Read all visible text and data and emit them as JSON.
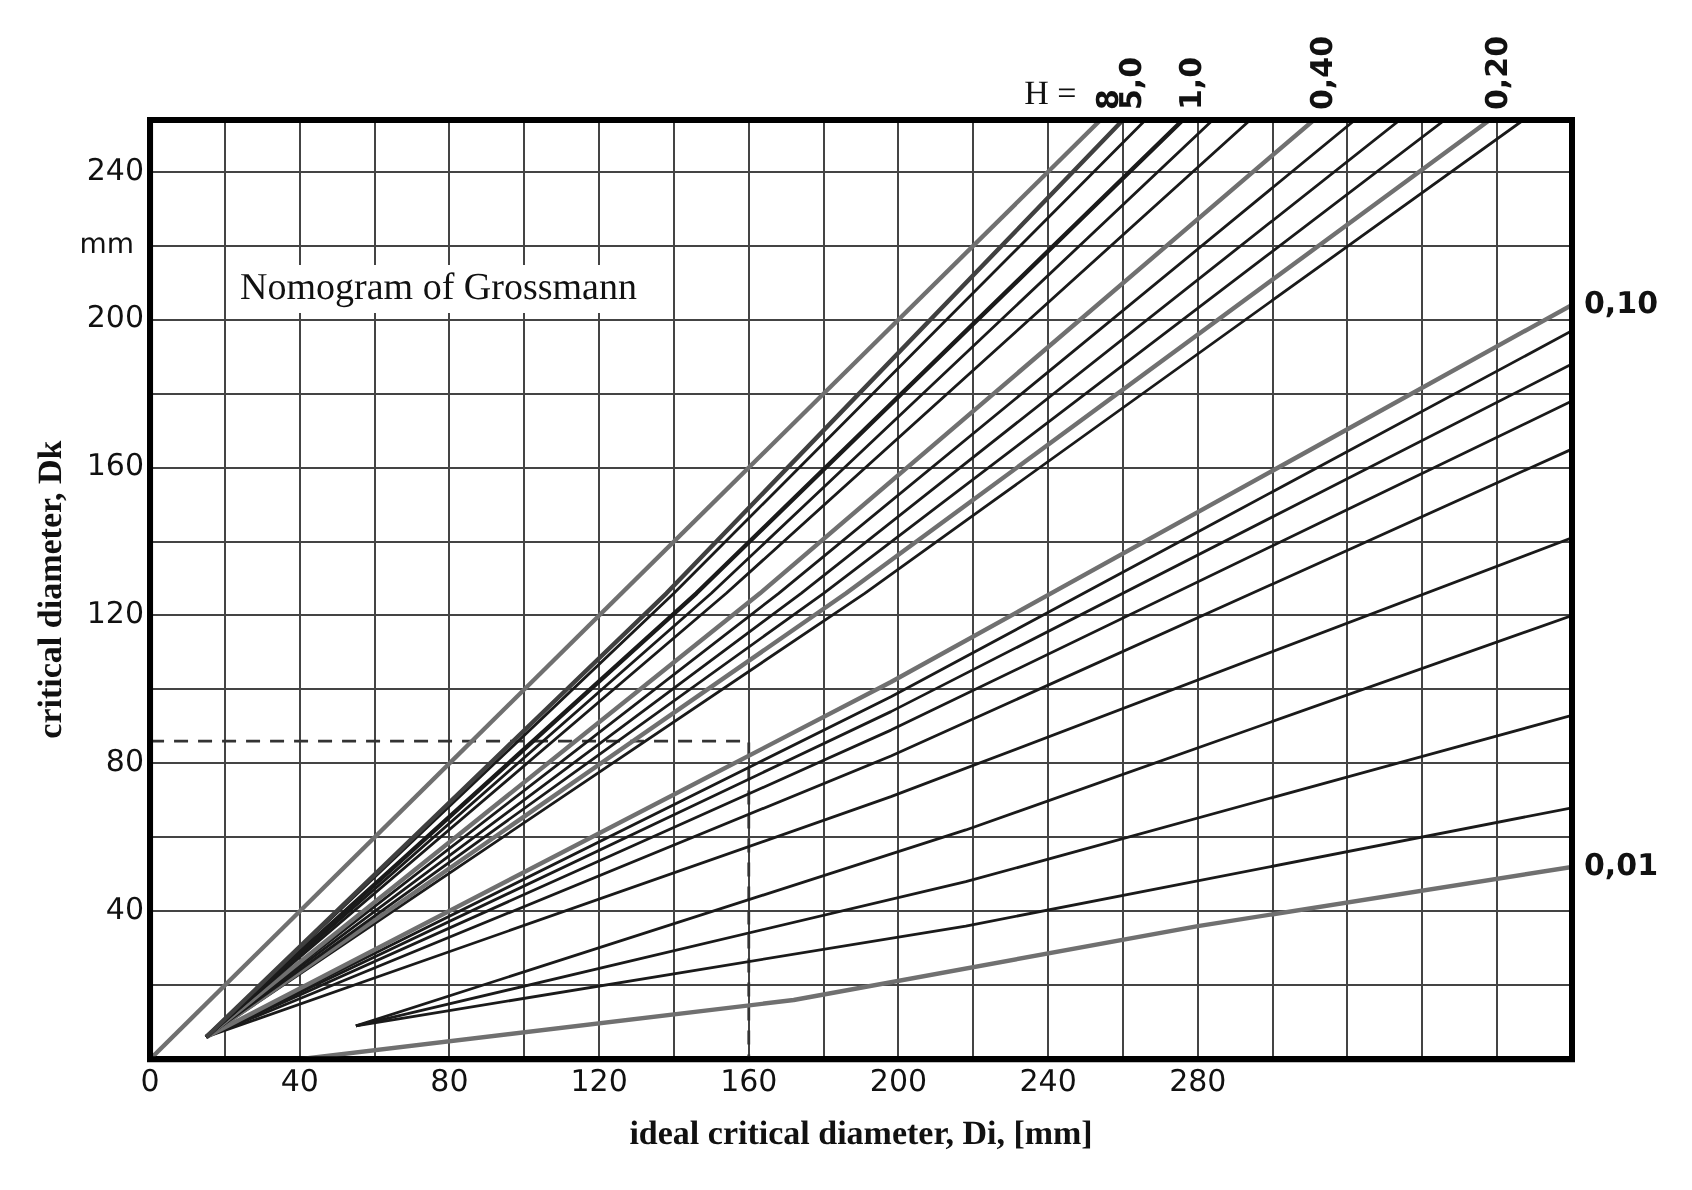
{
  "chart_data": {
    "type": "line",
    "title": "Nomogram of Grossmann",
    "xlabel": "ideal critical diameter, Di, [mm]",
    "ylabel": "critical diameter, Dk",
    "annotations": [
      "H =",
      "mm"
    ],
    "xlim": [
      0,
      380
    ],
    "ylim": [
      0,
      254
    ],
    "xticks": [
      0,
      {
        "value": 20,
        "label": null
      },
      40,
      {
        "value": 60,
        "label": null
      },
      80,
      {
        "value": 100,
        "label": null
      },
      120,
      {
        "value": 140,
        "label": null
      },
      160,
      {
        "value": 180,
        "label": null
      },
      200,
      {
        "value": 220,
        "label": null
      },
      240,
      {
        "value": 260,
        "label": null
      },
      280,
      {
        "value": 300,
        "label": null
      },
      {
        "value": 320,
        "label": null
      },
      {
        "value": 340,
        "label": null
      },
      {
        "value": 360,
        "label": null
      },
      {
        "value": 380,
        "label": null
      }
    ],
    "yticks": [
      {
        "value": 0,
        "label": null
      },
      {
        "value": 20,
        "label": null
      },
      40,
      {
        "value": 60,
        "label": null
      },
      80,
      {
        "value": 100,
        "label": null
      },
      120,
      {
        "value": 140,
        "label": null
      },
      160,
      {
        "value": 180,
        "label": null
      },
      200,
      {
        "value": 220,
        "label": null
      },
      240
    ],
    "grid": true,
    "legend": false,
    "marker": "none",
    "series": [
      {
        "name": "8",
        "color": "#707070",
        "x": [
          0,
          254
        ],
        "values": [
          0,
          254
        ]
      },
      {
        "name": "5,0",
        "color": "#404040",
        "x": [
          15,
          138,
          260
        ],
        "values": [
          6,
          126,
          254
        ]
      },
      {
        "color": "#1a1a1a",
        "x": [
          15,
          140,
          266
        ],
        "values": [
          6,
          126,
          254
        ]
      },
      {
        "name": "1,0",
        "color": "#1a1a1a",
        "x": [
          15,
          146,
          276
        ],
        "values": [
          6,
          126,
          254
        ]
      },
      {
        "color": "#1a1a1a",
        "x": [
          15,
          150,
          284
        ],
        "values": [
          6,
          126,
          254
        ]
      },
      {
        "color": "#1a1a1a",
        "x": [
          15,
          154,
          294
        ],
        "values": [
          6,
          126,
          254
        ]
      },
      {
        "name": "0,40",
        "color": "#707070",
        "x": [
          15,
          163,
          311
        ],
        "values": [
          6,
          126,
          254
        ]
      },
      {
        "color": "#1a1a1a",
        "x": [
          15,
          168,
          322
        ],
        "values": [
          6,
          126,
          254
        ]
      },
      {
        "color": "#1a1a1a",
        "x": [
          15,
          174,
          334
        ],
        "values": [
          6,
          126,
          254
        ]
      },
      {
        "color": "#1a1a1a",
        "x": [
          15,
          180,
          346
        ],
        "values": [
          6,
          126,
          254
        ]
      },
      {
        "name": "0,20",
        "color": "#707070",
        "x": [
          15,
          186,
          358
        ],
        "values": [
          6,
          126,
          254
        ]
      },
      {
        "color": "#1a1a1a",
        "x": [
          15,
          191,
          367
        ],
        "values": [
          6,
          126,
          254
        ]
      },
      {
        "name": "0,10",
        "color": "#707070",
        "x": [
          15,
          198,
          380
        ],
        "values": [
          6,
          102,
          204
        ]
      },
      {
        "color": "#1a1a1a",
        "x": [
          15,
          198,
          380
        ],
        "values": [
          6,
          98,
          197
        ]
      },
      {
        "color": "#1a1a1a",
        "x": [
          15,
          198,
          380
        ],
        "values": [
          6,
          94,
          188
        ]
      },
      {
        "color": "#1a1a1a",
        "x": [
          15,
          198,
          380
        ],
        "values": [
          6,
          89,
          178
        ]
      },
      {
        "color": "#1a1a1a",
        "x": [
          15,
          198,
          380
        ],
        "values": [
          6,
          82,
          165
        ]
      },
      {
        "color": "#1a1a1a",
        "x": [
          15,
          198,
          380
        ],
        "values": [
          6,
          71,
          141
        ]
      },
      {
        "color": "#1a1a1a",
        "x": [
          55,
          218,
          380
        ],
        "values": [
          9,
          62,
          120
        ]
      },
      {
        "color": "#1a1a1a",
        "x": [
          55,
          218,
          380
        ],
        "values": [
          9,
          48,
          93
        ]
      },
      {
        "color": "#1a1a1a",
        "x": [
          55,
          218,
          380
        ],
        "values": [
          9,
          36,
          68
        ]
      },
      {
        "name": "0,01",
        "color": "#707070",
        "x": [
          40,
          172,
          280,
          380
        ],
        "values": [
          0,
          16,
          36,
          52
        ]
      },
      {
        "color": "#333333",
        "line_style": "dashed",
        "x": [
          0,
          160,
          160
        ],
        "values": [
          86,
          86,
          0
        ]
      }
    ]
  }
}
